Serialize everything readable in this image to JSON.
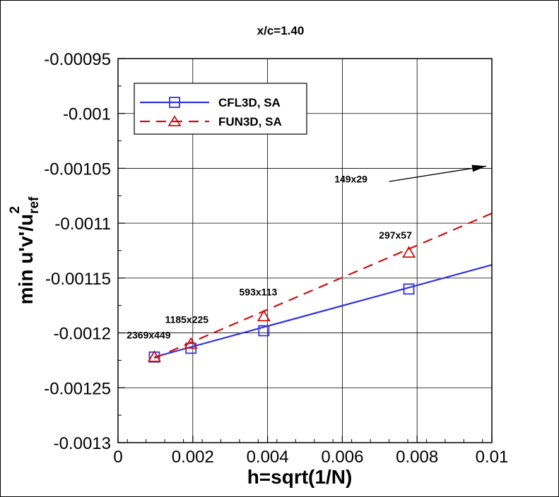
{
  "chart_data": {
    "type": "line",
    "title": "x/c=1.40",
    "xlabel": "h=sqrt(1/N)",
    "ylabel": {
      "main": "min u'v'/u",
      "sub": "ref",
      "sup": "2"
    },
    "xlim": [
      0,
      0.01
    ],
    "ylim": [
      -0.0013,
      -0.00095
    ],
    "x_ticks": [
      "0",
      "0.002",
      "0.004",
      "0.006",
      "0.008",
      "0.01"
    ],
    "x_tick_values": [
      0,
      0.002,
      0.004,
      0.006,
      0.008,
      0.01
    ],
    "y_ticks": [
      "-0.00095",
      "-0.001",
      "-0.00105",
      "-0.0011",
      "-0.00115",
      "-0.0012",
      "-0.00125",
      "-0.0013"
    ],
    "y_tick_values": [
      -0.00095,
      -0.001,
      -0.00105,
      -0.0011,
      -0.00115,
      -0.0012,
      -0.00125,
      -0.0013
    ],
    "grid": true,
    "legend_position": "top-left",
    "series": [
      {
        "name": "CFL3D, SA",
        "color": "#3333dd",
        "marker": "square",
        "line_style": "solid",
        "x": [
          0.000972,
          0.00195,
          0.0039,
          0.00778
        ],
        "y": [
          -0.001222,
          -0.001214,
          -0.001198,
          -0.00116
        ],
        "fit_line": {
          "x": [
            0.000972,
            0.01
          ],
          "y": [
            -0.001222,
            -0.001138
          ]
        }
      },
      {
        "name": "FUN3D, SA",
        "color": "#cc1111",
        "marker": "triangle",
        "line_style": "dashed",
        "x": [
          0.000972,
          0.00195,
          0.0039,
          0.00778
        ],
        "y": [
          -0.001222,
          -0.00121,
          -0.001185,
          -0.001127
        ],
        "fit_line": {
          "x": [
            0.000972,
            0.01
          ],
          "y": [
            -0.001223,
            -0.001091
          ]
        }
      }
    ],
    "annotations": [
      {
        "text": "2369x449",
        "x": 0.00082,
        "y": -0.001205
      },
      {
        "text": "1185x225",
        "x": 0.00184,
        "y": -0.001191
      },
      {
        "text": "593x113",
        "x": 0.00375,
        "y": -0.001166
      },
      {
        "text": "297x57",
        "x": 0.00742,
        "y": -0.001114
      },
      {
        "text": "149x29",
        "x": 0.00623,
        "y": -0.001063
      }
    ],
    "arrow": {
      "from": [
        0.00725,
        -0.001062
      ],
      "to": [
        0.00985,
        -0.001048
      ]
    }
  }
}
